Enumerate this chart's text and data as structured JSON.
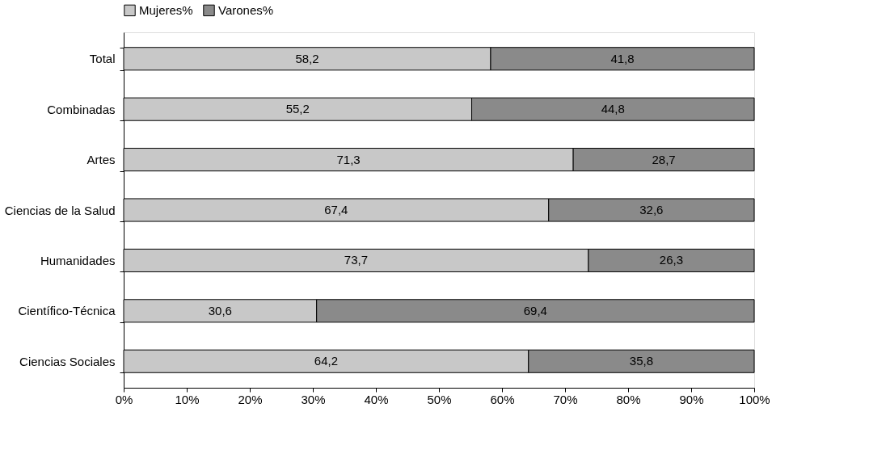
{
  "chart_data": {
    "type": "bar",
    "orientation": "horizontal",
    "stacked": true,
    "categories": [
      "Total",
      "Combinadas",
      "Artes",
      "Ciencias de la Salud",
      "Humanidades",
      "Científico-Técnica",
      "Ciencias Sociales"
    ],
    "series": [
      {
        "name": "Mujeres%",
        "color": "#c8c8c8",
        "values": [
          58.2,
          55.2,
          71.3,
          67.4,
          73.7,
          30.6,
          64.2
        ],
        "value_labels": [
          "58,2",
          "55,2",
          "71,3",
          "67,4",
          "73,7",
          "30,6",
          "64,2"
        ]
      },
      {
        "name": "Varones%",
        "color": "#8a8a8a",
        "values": [
          41.8,
          44.8,
          28.7,
          32.6,
          26.3,
          69.4,
          35.8
        ],
        "value_labels": [
          "41,8",
          "44,8",
          "28,7",
          "32,6",
          "26,3",
          "69,4",
          "35,8"
        ]
      }
    ],
    "xlim": [
      0,
      100
    ],
    "xticks": [
      {
        "value": 0,
        "label": "0%"
      },
      {
        "value": 10,
        "label": "10%"
      },
      {
        "value": 20,
        "label": "20%"
      },
      {
        "value": 30,
        "label": "30%"
      },
      {
        "value": 40,
        "label": "40%"
      },
      {
        "value": 50,
        "label": "50%"
      },
      {
        "value": 60,
        "label": "60%"
      },
      {
        "value": 70,
        "label": "70%"
      },
      {
        "value": 80,
        "label": "80%"
      },
      {
        "value": 90,
        "label": "90%"
      },
      {
        "value": 100,
        "label": "100%"
      }
    ],
    "legend": "top",
    "grid": false
  }
}
